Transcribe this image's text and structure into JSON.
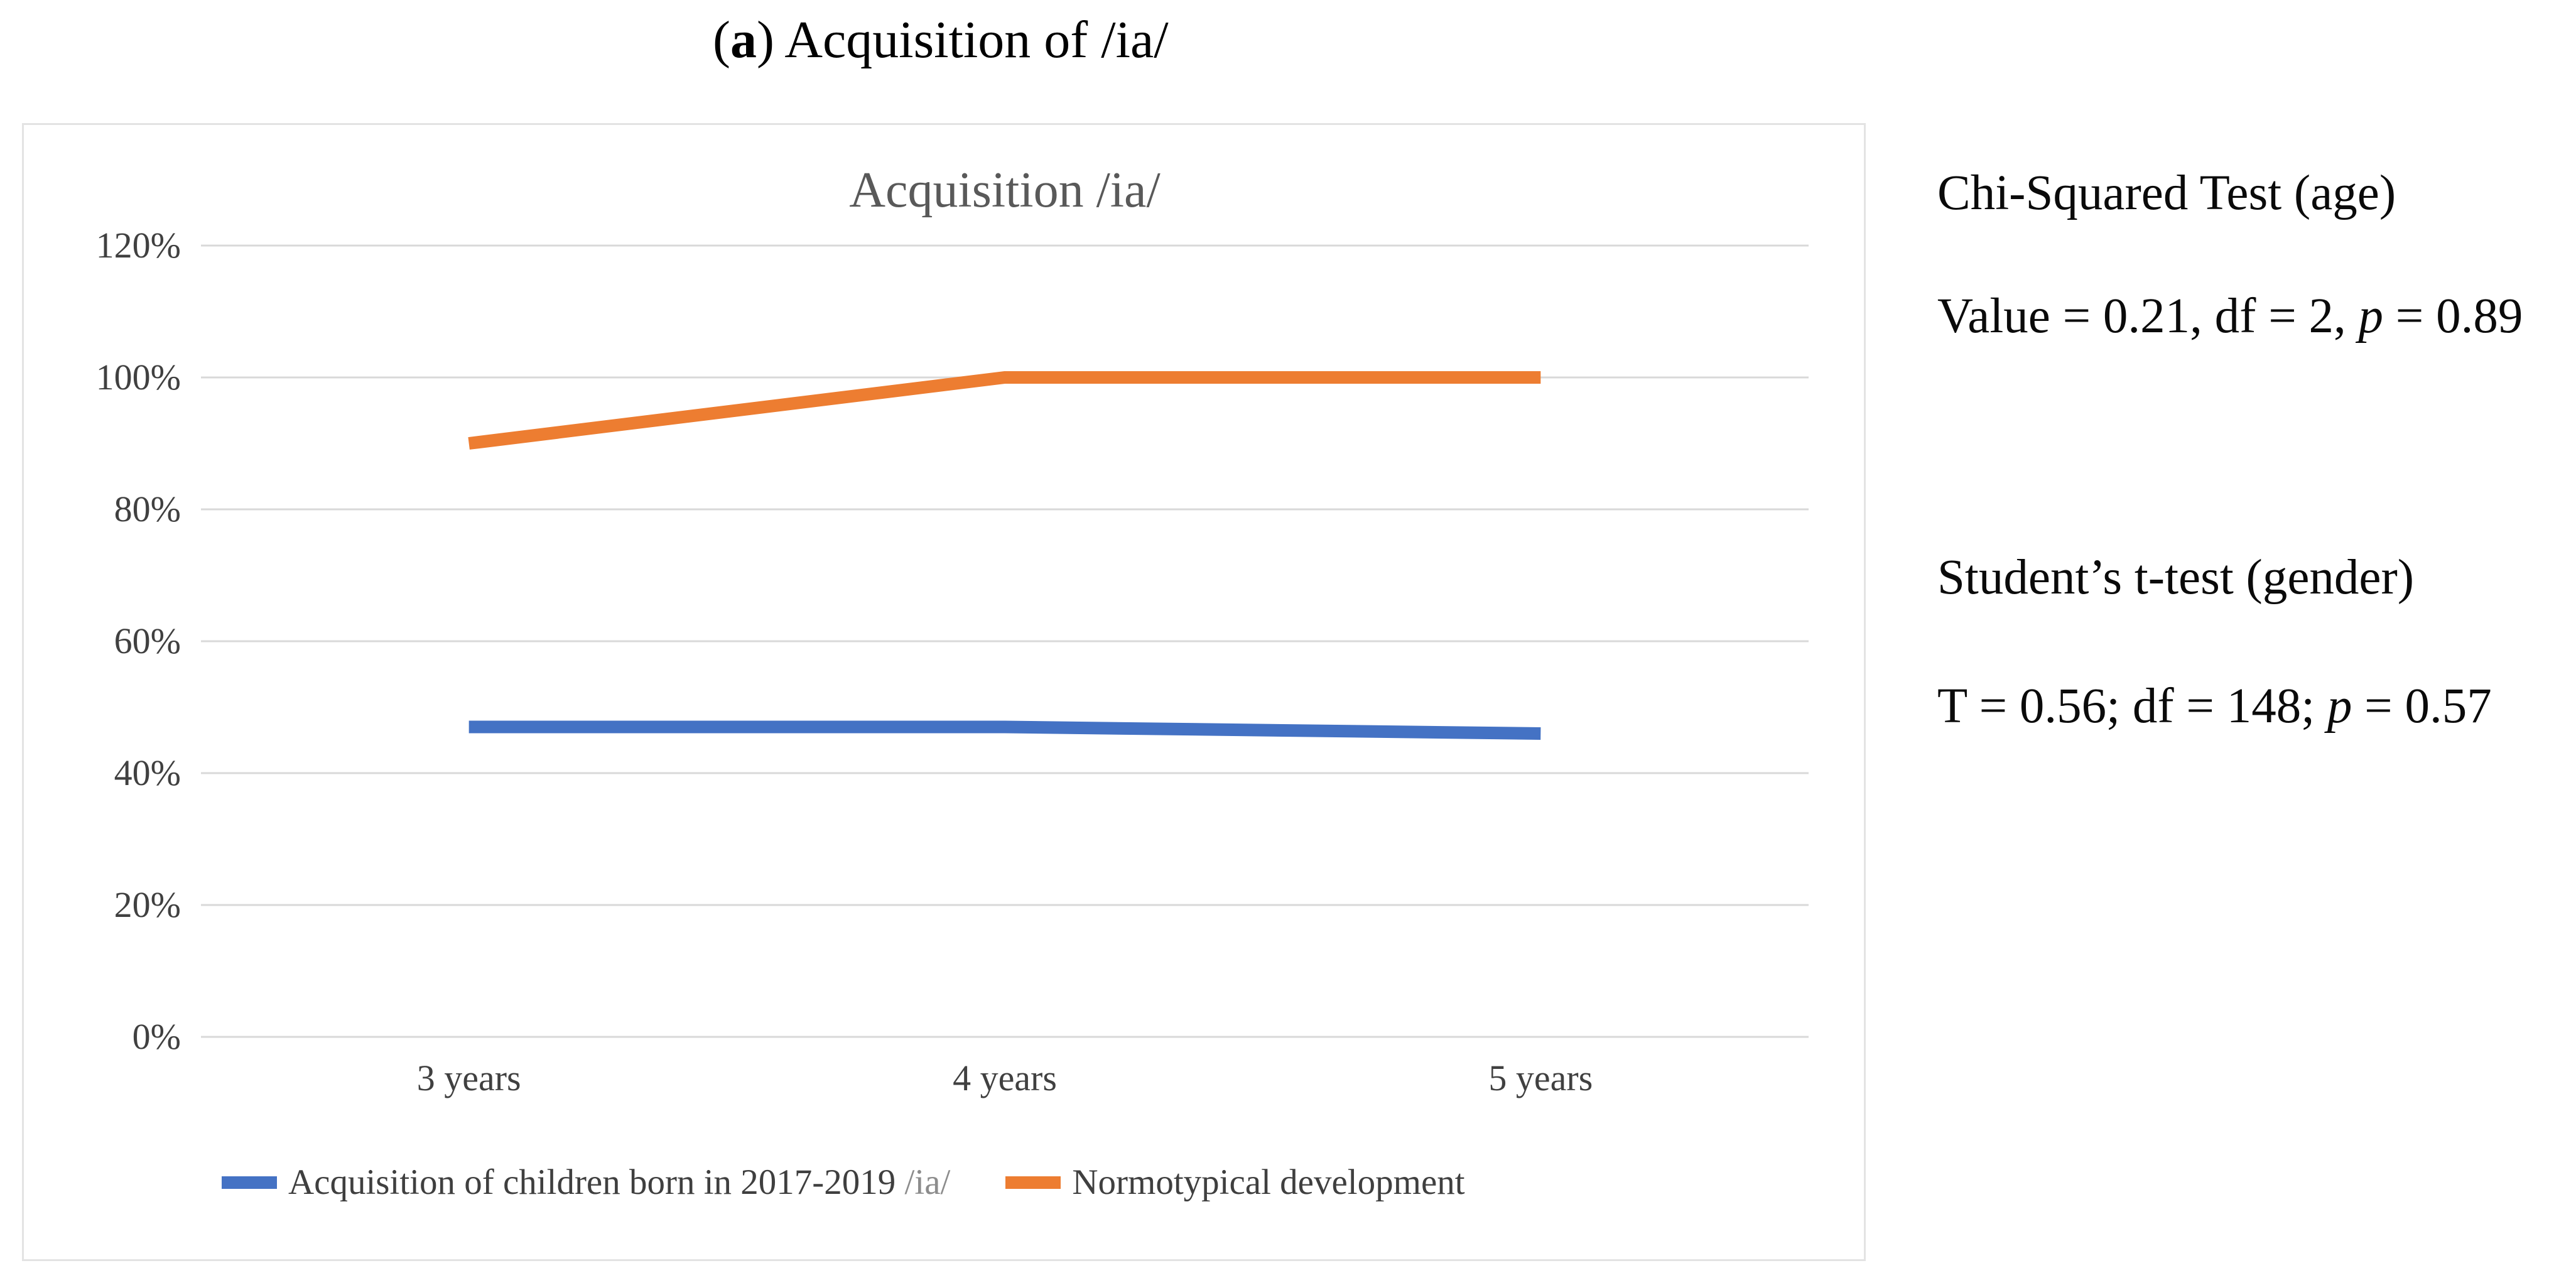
{
  "caption": {
    "open": "(",
    "bold": "a",
    "rest": ") Acquisition of /ia/"
  },
  "stats": {
    "chi_title": "Chi-Squared Test (age)",
    "chi_pre": "Value = 0.21, df = 2, ",
    "chi_p": "p",
    "chi_post": " = 0.89",
    "t_title": "Student’s t-test (gender)",
    "t_pre": "T = 0.56; df = 148; ",
    "t_p": "p",
    "t_post": " = 0.57"
  },
  "chart_data": {
    "type": "line",
    "title": "Acquisition /ia/",
    "categories": [
      "3 years",
      "4 years",
      "5 years"
    ],
    "series": [
      {
        "name": "Acquisition of children born in 2017-2019",
        "name_suffix": " /ia/",
        "values": [
          47,
          47,
          46
        ],
        "color": "#4472C4"
      },
      {
        "name": "Normotypical development",
        "name_suffix": "",
        "values": [
          90,
          100,
          100
        ],
        "color": "#ED7D31"
      }
    ],
    "unit": "%",
    "ylim": [
      0,
      120
    ],
    "yticks": [
      0,
      20,
      40,
      60,
      80,
      100,
      120
    ],
    "grid": true,
    "legend_position": "bottom",
    "colors": {
      "gridline": "#d9d9d9",
      "axis_text": "#404040",
      "title_text": "#595959",
      "panel_border": "#e3e3e3"
    }
  }
}
